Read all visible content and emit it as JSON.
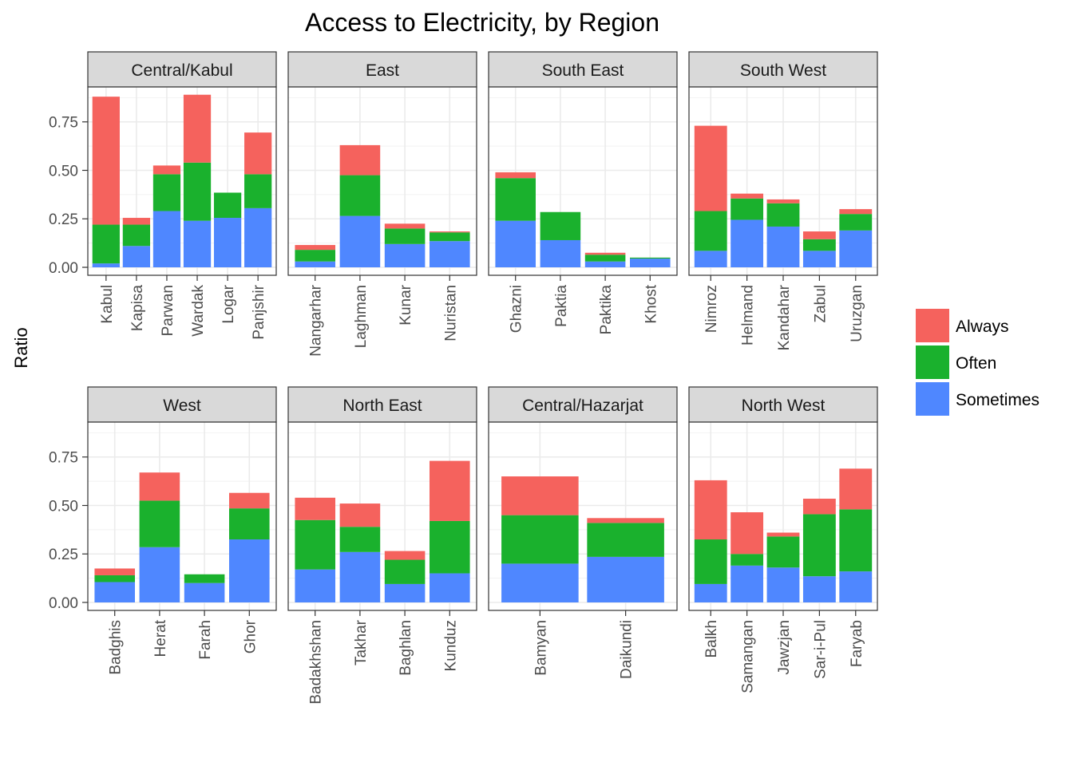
{
  "chart_data": {
    "type": "bar",
    "stacked": true,
    "title": "Access to Electricity, by Region",
    "xlabel": "",
    "ylabel": "Ratio",
    "ylim": [
      0,
      0.93
    ],
    "yticks": [
      "0.00",
      "0.25",
      "0.50",
      "0.75"
    ],
    "ytick_values": [
      0,
      0.25,
      0.5,
      0.75
    ],
    "grid": true,
    "legend_position": "right",
    "series": [
      {
        "name": "Sometimes",
        "color": "#4F87FF"
      },
      {
        "name": "Often",
        "color": "#1AB12D"
      },
      {
        "name": "Always",
        "color": "#F5625D"
      }
    ],
    "legend": [
      {
        "name": "Always",
        "color": "#F5625D"
      },
      {
        "name": "Often",
        "color": "#1AB12D"
      },
      {
        "name": "Sometimes",
        "color": "#4F87FF"
      }
    ],
    "panels": [
      {
        "region": "Central/Kabul",
        "provinces": [
          {
            "name": "Kabul",
            "sometimes": 0.02,
            "often": 0.2,
            "always": 0.66
          },
          {
            "name": "Kapisa",
            "sometimes": 0.11,
            "often": 0.11,
            "always": 0.035
          },
          {
            "name": "Parwan",
            "sometimes": 0.29,
            "often": 0.19,
            "always": 0.045
          },
          {
            "name": "Wardak",
            "sometimes": 0.24,
            "often": 0.3,
            "always": 0.35
          },
          {
            "name": "Logar",
            "sometimes": 0.255,
            "often": 0.13,
            "always": 0.0
          },
          {
            "name": "Panjshir",
            "sometimes": 0.305,
            "often": 0.175,
            "always": 0.215
          }
        ]
      },
      {
        "region": "East",
        "provinces": [
          {
            "name": "Nangarhar",
            "sometimes": 0.03,
            "often": 0.06,
            "always": 0.025
          },
          {
            "name": "Laghman",
            "sometimes": 0.265,
            "often": 0.21,
            "always": 0.155
          },
          {
            "name": "Kunar",
            "sometimes": 0.12,
            "often": 0.08,
            "always": 0.025
          },
          {
            "name": "Nuristan",
            "sometimes": 0.135,
            "often": 0.045,
            "always": 0.005
          }
        ]
      },
      {
        "region": "South East",
        "provinces": [
          {
            "name": "Ghazni",
            "sometimes": 0.24,
            "often": 0.22,
            "always": 0.03
          },
          {
            "name": "Paktia",
            "sometimes": 0.14,
            "often": 0.145,
            "always": 0.0
          },
          {
            "name": "Paktika",
            "sometimes": 0.03,
            "often": 0.035,
            "always": 0.01
          },
          {
            "name": "Khost",
            "sometimes": 0.045,
            "often": 0.005,
            "always": 0.0
          }
        ]
      },
      {
        "region": "South West",
        "provinces": [
          {
            "name": "Nimroz",
            "sometimes": 0.085,
            "often": 0.205,
            "always": 0.44
          },
          {
            "name": "Helmand",
            "sometimes": 0.245,
            "often": 0.11,
            "always": 0.025
          },
          {
            "name": "Kandahar",
            "sometimes": 0.21,
            "often": 0.12,
            "always": 0.02
          },
          {
            "name": "Zabul",
            "sometimes": 0.085,
            "often": 0.06,
            "always": 0.04
          },
          {
            "name": "Uruzgan",
            "sometimes": 0.19,
            "often": 0.085,
            "always": 0.025
          }
        ]
      },
      {
        "region": "West",
        "provinces": [
          {
            "name": "Badghis",
            "sometimes": 0.105,
            "often": 0.035,
            "always": 0.035
          },
          {
            "name": "Herat",
            "sometimes": 0.285,
            "often": 0.24,
            "always": 0.145
          },
          {
            "name": "Farah",
            "sometimes": 0.1,
            "often": 0.045,
            "always": 0.0
          },
          {
            "name": "Ghor",
            "sometimes": 0.325,
            "often": 0.16,
            "always": 0.08
          }
        ]
      },
      {
        "region": "North East",
        "provinces": [
          {
            "name": "Badakhshan",
            "sometimes": 0.17,
            "often": 0.255,
            "always": 0.115
          },
          {
            "name": "Takhar",
            "sometimes": 0.26,
            "often": 0.13,
            "always": 0.12
          },
          {
            "name": "Baghlan",
            "sometimes": 0.095,
            "often": 0.125,
            "always": 0.045
          },
          {
            "name": "Kunduz",
            "sometimes": 0.15,
            "often": 0.27,
            "always": 0.31
          }
        ]
      },
      {
        "region": "Central/Hazarjat",
        "provinces": [
          {
            "name": "Bamyan",
            "sometimes": 0.2,
            "often": 0.25,
            "always": 0.2
          },
          {
            "name": "Daikundi",
            "sometimes": 0.235,
            "often": 0.175,
            "always": 0.025
          }
        ]
      },
      {
        "region": "North West",
        "provinces": [
          {
            "name": "Balkh",
            "sometimes": 0.095,
            "often": 0.23,
            "always": 0.305
          },
          {
            "name": "Samangan",
            "sometimes": 0.19,
            "often": 0.06,
            "always": 0.215
          },
          {
            "name": "Jawzjan",
            "sometimes": 0.18,
            "often": 0.16,
            "always": 0.02
          },
          {
            "name": "Sar-i-Pul",
            "sometimes": 0.135,
            "often": 0.32,
            "always": 0.08
          },
          {
            "name": "Faryab",
            "sometimes": 0.16,
            "often": 0.32,
            "always": 0.21
          }
        ]
      }
    ]
  }
}
